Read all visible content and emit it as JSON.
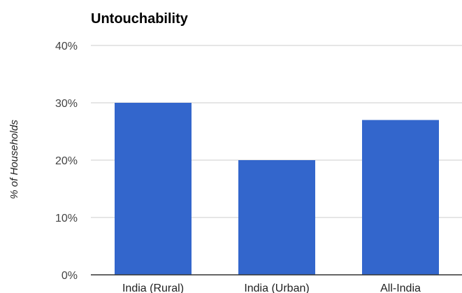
{
  "chart_data": {
    "type": "bar",
    "title": "Untouchability",
    "xlabel": "",
    "ylabel": "% of Households",
    "categories": [
      "India (Rural)",
      "India (Urban)",
      "All-India"
    ],
    "values": [
      30,
      20,
      27
    ],
    "ylim": [
      0,
      40
    ],
    "yticks": [
      0,
      10,
      20,
      30,
      40
    ],
    "ytick_labels": [
      "0%",
      "10%",
      "20%",
      "30%",
      "40%"
    ],
    "grid": true,
    "legend": "none",
    "bar_color": "#3366cc",
    "grid_color": "#cccccc",
    "axis_color": "#333333"
  }
}
